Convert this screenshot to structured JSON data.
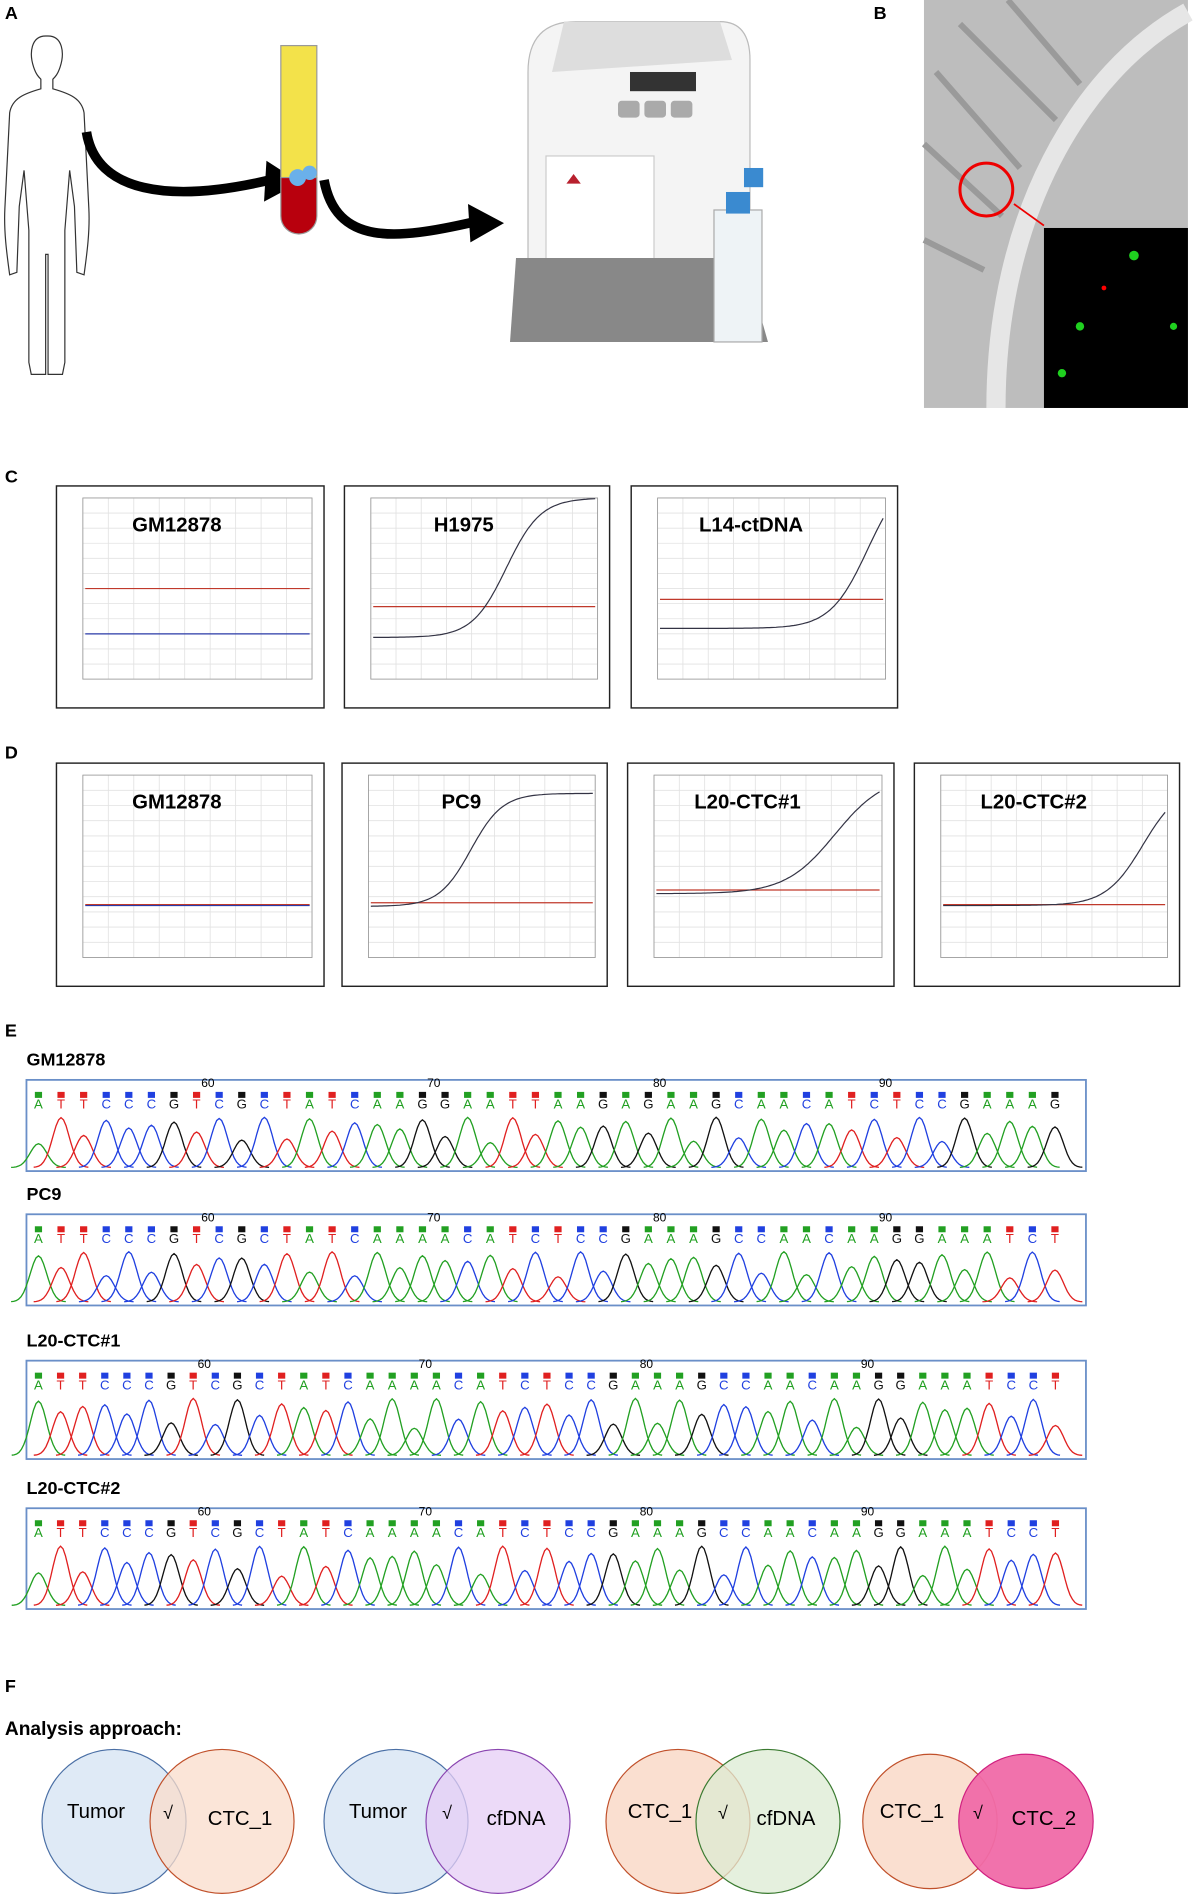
{
  "panels": {
    "a": "A",
    "b": "B",
    "c": "C",
    "d": "D",
    "e": "E",
    "f": "F"
  },
  "qpcr_c": [
    {
      "title": "GM12878"
    },
    {
      "title": "H1975"
    },
    {
      "title": "L14-ctDNA"
    }
  ],
  "qpcr_d": [
    {
      "title": "GM12878"
    },
    {
      "title": "PC9"
    },
    {
      "title": "L20-CTC#1"
    },
    {
      "title": "L20-CTC#2"
    }
  ],
  "sequencing": [
    {
      "sample": "GM12878",
      "positions": [
        60,
        70,
        80,
        90
      ],
      "bases": [
        "A",
        "T",
        "T",
        "C",
        "C",
        "C",
        "G",
        "T",
        "C",
        "G",
        "C",
        "T",
        "A",
        "T",
        "C",
        "A",
        "A",
        "G",
        "G",
        "A",
        "A",
        "T",
        "T",
        "A",
        "A",
        "G",
        "A",
        "G",
        "A",
        "A",
        "G",
        "C",
        "A",
        "A",
        "C",
        "A",
        "T",
        "C",
        "T",
        "C",
        "C",
        "G",
        "A",
        "A",
        "A",
        "G"
      ]
    },
    {
      "sample": "PC9",
      "positions": [
        60,
        70,
        80,
        90
      ],
      "bases": [
        "A",
        "T",
        "T",
        "C",
        "C",
        "C",
        "G",
        "T",
        "C",
        "G",
        "C",
        "T",
        "A",
        "T",
        "C",
        "A",
        "A",
        "A",
        "A",
        "C",
        "A",
        "T",
        "C",
        "T",
        "C",
        "C",
        "G",
        "A",
        "A",
        "A",
        "G",
        "C",
        "C",
        "A",
        "A",
        "C",
        "A",
        "A",
        "G",
        "G",
        "A",
        "A",
        "A",
        "T",
        "C",
        "T"
      ]
    },
    {
      "sample": "L20-CTC#1",
      "positions": [
        60,
        70,
        80,
        90
      ],
      "bases": [
        "A",
        "T",
        "T",
        "C",
        "C",
        "C",
        "G",
        "T",
        "C",
        "G",
        "C",
        "T",
        "A",
        "T",
        "C",
        "A",
        "A",
        "A",
        "A",
        "C",
        "A",
        "T",
        "C",
        "T",
        "C",
        "C",
        "G",
        "A",
        "A",
        "A",
        "G",
        "C",
        "C",
        "A",
        "A",
        "C",
        "A",
        "A",
        "G",
        "G",
        "A",
        "A",
        "A",
        "T",
        "C",
        "C",
        "T"
      ]
    },
    {
      "sample": "L20-CTC#2",
      "positions": [
        60,
        70,
        80,
        90
      ],
      "bases": [
        "A",
        "T",
        "T",
        "C",
        "C",
        "C",
        "G",
        "T",
        "C",
        "G",
        "C",
        "T",
        "A",
        "T",
        "C",
        "A",
        "A",
        "A",
        "A",
        "C",
        "A",
        "T",
        "C",
        "T",
        "C",
        "C",
        "G",
        "A",
        "A",
        "A",
        "G",
        "C",
        "C",
        "A",
        "A",
        "C",
        "A",
        "A",
        "G",
        "G",
        "A",
        "A",
        "A",
        "T",
        "C",
        "C",
        "T"
      ]
    }
  ],
  "analysis": {
    "title": "Analysis approach:",
    "venns": [
      {
        "left": "Tumor",
        "right": "CTC_1",
        "mark": "√"
      },
      {
        "left": "Tumor",
        "right": "cfDNA",
        "mark": "√"
      },
      {
        "left": "CTC_1",
        "right": "cfDNA",
        "mark": "√"
      },
      {
        "left": "CTC_1",
        "right": "CTC_2",
        "mark": "√"
      }
    ]
  }
}
